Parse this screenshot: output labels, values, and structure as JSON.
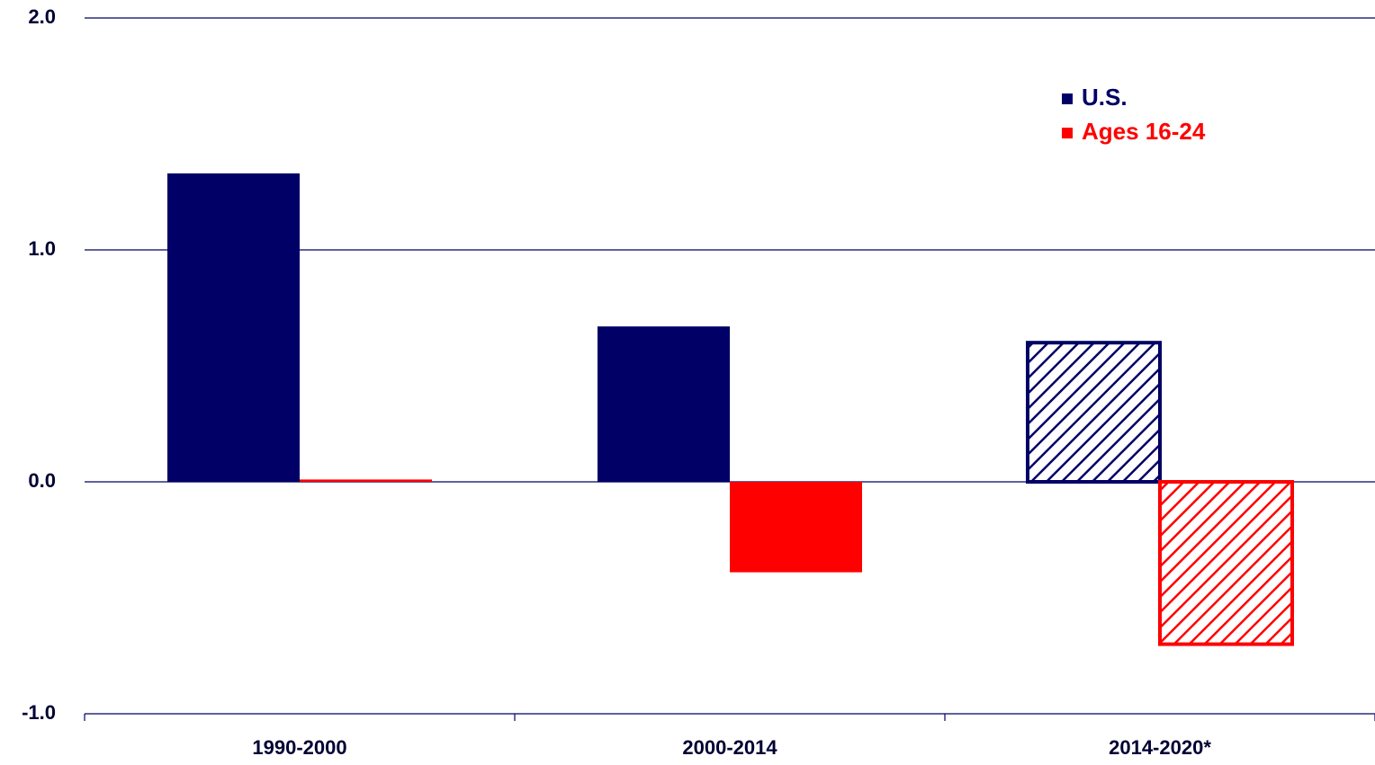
{
  "chart_data": {
    "type": "bar",
    "categories": [
      "1990-2000",
      "2000-2014",
      "2014-2020*"
    ],
    "series": [
      {
        "name": "U.S.",
        "color": "#000066",
        "values": [
          1.33,
          0.67,
          0.6
        ]
      },
      {
        "name": "Ages 16-24",
        "color": "#ff0000",
        "values": [
          0.01,
          -0.39,
          -0.7
        ]
      }
    ],
    "hatched": [
      false,
      false,
      true
    ],
    "ylim": [
      -1,
      2
    ],
    "yticks": [
      {
        "value": -1,
        "label": "-1.0"
      },
      {
        "value": 0,
        "label": "0.0"
      },
      {
        "value": 1,
        "label": "1.0"
      },
      {
        "value": 2,
        "label": "2.0"
      }
    ],
    "grid": true,
    "legend": "upper right"
  }
}
